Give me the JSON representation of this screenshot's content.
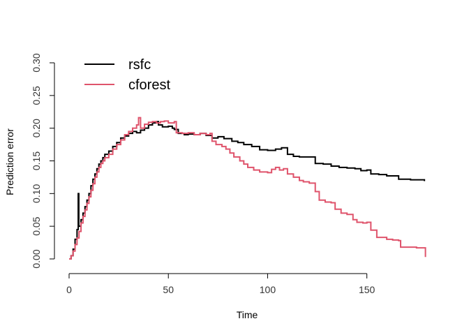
{
  "chart_data": {
    "type": "line",
    "title": "",
    "xlabel": "Time",
    "ylabel": "Prediction error",
    "xlim": [
      0,
      180
    ],
    "ylim": [
      0,
      0.3
    ],
    "x_ticks": [
      "0",
      "50",
      "100",
      "150"
    ],
    "y_ticks": [
      "0.00",
      "0.05",
      "0.10",
      "0.15",
      "0.20",
      "0.25",
      "0.30"
    ],
    "grid": false,
    "legend_position": "top-left",
    "series": [
      {
        "name": "rsfc",
        "color": "#000000",
        "step": true,
        "points": [
          [
            0,
            0.0
          ],
          [
            1,
            0.005
          ],
          [
            2,
            0.015
          ],
          [
            3,
            0.03
          ],
          [
            4,
            0.045
          ],
          [
            4.6,
            0.055
          ],
          [
            4.6,
            0.1
          ],
          [
            4.9,
            0.1
          ],
          [
            4.9,
            0.05
          ],
          [
            6,
            0.06
          ],
          [
            7,
            0.07
          ],
          [
            8,
            0.08
          ],
          [
            9,
            0.09
          ],
          [
            10,
            0.1
          ],
          [
            11,
            0.112
          ],
          [
            12,
            0.122
          ],
          [
            13,
            0.13
          ],
          [
            14,
            0.138
          ],
          [
            15,
            0.145
          ],
          [
            16,
            0.15
          ],
          [
            17,
            0.155
          ],
          [
            18,
            0.16
          ],
          [
            20,
            0.165
          ],
          [
            22,
            0.172
          ],
          [
            24,
            0.178
          ],
          [
            26,
            0.185
          ],
          [
            28,
            0.188
          ],
          [
            30,
            0.192
          ],
          [
            32,
            0.195
          ],
          [
            34,
            0.193
          ],
          [
            36,
            0.197
          ],
          [
            38,
            0.2
          ],
          [
            40,
            0.205
          ],
          [
            42,
            0.208
          ],
          [
            44,
            0.21
          ],
          [
            45,
            0.205
          ],
          [
            47,
            0.202
          ],
          [
            50,
            0.203
          ],
          [
            52,
            0.2
          ],
          [
            53,
            0.198
          ],
          [
            55,
            0.192
          ],
          [
            58,
            0.19
          ],
          [
            60,
            0.191
          ],
          [
            63,
            0.19
          ],
          [
            66,
            0.192
          ],
          [
            69,
            0.189
          ],
          [
            72,
            0.185
          ],
          [
            75,
            0.187
          ],
          [
            78,
            0.184
          ],
          [
            82,
            0.18
          ],
          [
            85,
            0.178
          ],
          [
            88,
            0.175
          ],
          [
            92,
            0.172
          ],
          [
            96,
            0.167
          ],
          [
            100,
            0.166
          ],
          [
            104,
            0.168
          ],
          [
            107,
            0.17
          ],
          [
            110,
            0.16
          ],
          [
            113,
            0.157
          ],
          [
            116,
            0.156
          ],
          [
            120,
            0.156
          ],
          [
            124,
            0.146
          ],
          [
            128,
            0.145
          ],
          [
            132,
            0.142
          ],
          [
            136,
            0.14
          ],
          [
            140,
            0.139
          ],
          [
            144,
            0.138
          ],
          [
            147,
            0.135
          ],
          [
            150,
            0.136
          ],
          [
            152,
            0.13
          ],
          [
            156,
            0.129
          ],
          [
            160,
            0.127
          ],
          [
            166,
            0.122
          ],
          [
            172,
            0.121
          ],
          [
            178,
            0.121
          ],
          [
            179,
            0.119
          ]
        ]
      },
      {
        "name": "cforest",
        "color": "#DF536B",
        "step": true,
        "points": [
          [
            0,
            0.0
          ],
          [
            1,
            0.005
          ],
          [
            2,
            0.012
          ],
          [
            3,
            0.022
          ],
          [
            4,
            0.032
          ],
          [
            5,
            0.042
          ],
          [
            6,
            0.055
          ],
          [
            7,
            0.065
          ],
          [
            8,
            0.075
          ],
          [
            9,
            0.085
          ],
          [
            10,
            0.095
          ],
          [
            11,
            0.105
          ],
          [
            12,
            0.115
          ],
          [
            13,
            0.125
          ],
          [
            14,
            0.133
          ],
          [
            15,
            0.14
          ],
          [
            16,
            0.146
          ],
          [
            17,
            0.15
          ],
          [
            18,
            0.155
          ],
          [
            20,
            0.16
          ],
          [
            22,
            0.168
          ],
          [
            24,
            0.175
          ],
          [
            26,
            0.182
          ],
          [
            28,
            0.19
          ],
          [
            30,
            0.195
          ],
          [
            32,
            0.2
          ],
          [
            34,
            0.205
          ],
          [
            35,
            0.216
          ],
          [
            36,
            0.2
          ],
          [
            38,
            0.206
          ],
          [
            40,
            0.209
          ],
          [
            42,
            0.21
          ],
          [
            44,
            0.208
          ],
          [
            46,
            0.21
          ],
          [
            48,
            0.211
          ],
          [
            50,
            0.208
          ],
          [
            53,
            0.21
          ],
          [
            54,
            0.193
          ],
          [
            57,
            0.192
          ],
          [
            60,
            0.193
          ],
          [
            63,
            0.19
          ],
          [
            66,
            0.192
          ],
          [
            69,
            0.19
          ],
          [
            71,
            0.192
          ],
          [
            72,
            0.18
          ],
          [
            74,
            0.175
          ],
          [
            77,
            0.172
          ],
          [
            79,
            0.168
          ],
          [
            81,
            0.162
          ],
          [
            83,
            0.156
          ],
          [
            86,
            0.15
          ],
          [
            88,
            0.145
          ],
          [
            90,
            0.14
          ],
          [
            93,
            0.136
          ],
          [
            96,
            0.133
          ],
          [
            100,
            0.132
          ],
          [
            102,
            0.137
          ],
          [
            104,
            0.14
          ],
          [
            106,
            0.136
          ],
          [
            108,
            0.138
          ],
          [
            110,
            0.13
          ],
          [
            113,
            0.125
          ],
          [
            116,
            0.12
          ],
          [
            118,
            0.118
          ],
          [
            121,
            0.116
          ],
          [
            124,
            0.103
          ],
          [
            126,
            0.09
          ],
          [
            129,
            0.087
          ],
          [
            132,
            0.086
          ],
          [
            134,
            0.076
          ],
          [
            137,
            0.07
          ],
          [
            140,
            0.068
          ],
          [
            143,
            0.06
          ],
          [
            145,
            0.056
          ],
          [
            148,
            0.055
          ],
          [
            150,
            0.056
          ],
          [
            152,
            0.044
          ],
          [
            155,
            0.033
          ],
          [
            160,
            0.03
          ],
          [
            163,
            0.029
          ],
          [
            166,
            0.028
          ],
          [
            167,
            0.018
          ],
          [
            175,
            0.017
          ],
          [
            179,
            0.017
          ],
          [
            179.5,
            0.003
          ]
        ]
      }
    ]
  }
}
